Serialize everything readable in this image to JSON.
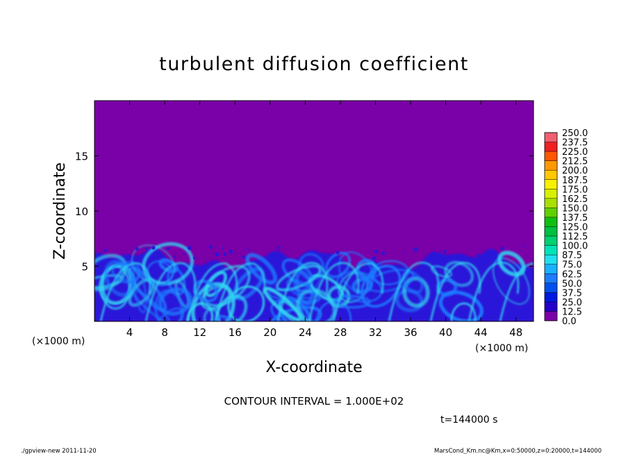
{
  "chart_data": {
    "type": "heatmap",
    "title": "turbulent diffusion coefficient",
    "xlabel": "X-coordinate",
    "ylabel": "Z-coordinate",
    "x_unit": "(×1000 m)",
    "y_unit": "(×1000 m)",
    "xlim": [
      0,
      50
    ],
    "ylim": [
      0,
      20
    ],
    "xticks": [
      4,
      8,
      12,
      16,
      20,
      24,
      28,
      32,
      36,
      40,
      44,
      48
    ],
    "yticks": [
      5,
      10,
      15
    ],
    "colorbar": {
      "levels": [
        "0.0",
        "12.5",
        "25.0",
        "37.5",
        "50.0",
        "62.5",
        "75.0",
        "87.5",
        "100.0",
        "112.5",
        "125.0",
        "137.5",
        "150.0",
        "162.5",
        "175.0",
        "187.5",
        "200.0",
        "212.5",
        "225.0",
        "237.5",
        "250.0"
      ],
      "colors": [
        "#7a00a8",
        "#2200c8",
        "#0018e0",
        "#0050ee",
        "#1e7cff",
        "#18b0ff",
        "#20e0f0",
        "#00e4b8",
        "#00d070",
        "#00c040",
        "#10c010",
        "#60d000",
        "#a8e000",
        "#d8f000",
        "#f8f000",
        "#ffc800",
        "#ff9800",
        "#ff5800",
        "#f02020",
        "#f06070"
      ]
    },
    "field_description_levels": {
      "upper_region_value": 0.0,
      "turbulent_layer_top_km": 6.5
    }
  },
  "annotations": {
    "contour_interval": "CONTOUR INTERVAL = 1.000E+02",
    "time": "t=144000 s",
    "footer_left": "./gpview-new  2011-11-20",
    "footer_right": "MarsCond_Km.nc@Km,x=0:50000,z=0:20000,t=144000"
  },
  "colors": {
    "background_field": "#7a00a8",
    "low_turbulence": "#2a14d8",
    "medium_turbulence": "#1e7cff",
    "high_turbulence": "#30d8f0"
  }
}
